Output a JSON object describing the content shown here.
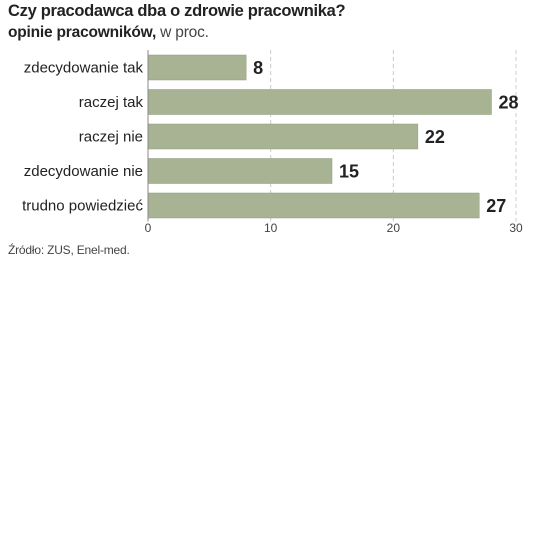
{
  "title": "Czy pracodawca dba o zdrowie pracownika?",
  "subtitle_main": "opinie pracowników,",
  "subtitle_rest": " w proc.",
  "source": "Źródło: ZUS, Enel-med.",
  "colors": {
    "bar": "#a7b393",
    "bar_stroke": "#8e9a7b",
    "grid": "#cccccc",
    "axis": "#888888"
  },
  "chart_data": {
    "type": "bar",
    "orientation": "horizontal",
    "title": "Czy pracodawca dba o zdrowie pracownika?",
    "subtitle": "opinie pracowników, w proc.",
    "categories": [
      "zdecydowanie tak",
      "raczej tak",
      "raczej nie",
      "zdecydowanie nie",
      "trudno powiedzieć"
    ],
    "values": [
      8,
      28,
      22,
      15,
      27
    ],
    "xlim": [
      0,
      30
    ],
    "xticks": [
      0,
      10,
      20,
      30
    ],
    "grid": true,
    "xlabel": "",
    "ylabel": ""
  }
}
